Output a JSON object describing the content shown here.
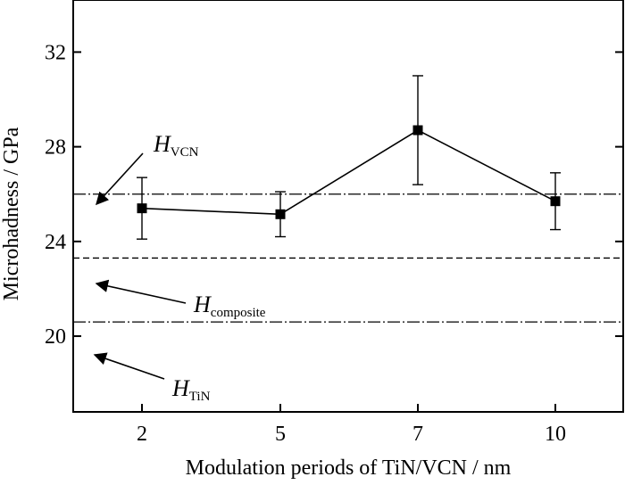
{
  "chart_data": {
    "type": "line",
    "xlabel": "Modulation periods of TiN/VCN / nm",
    "ylabel": "Microhadness / GPa",
    "ylim": [
      16.8,
      34.2
    ],
    "yticks": [
      20,
      24,
      28,
      32
    ],
    "categories": [
      "2",
      "5",
      "7",
      "10"
    ],
    "series": [
      {
        "values": [
          25.4,
          25.15,
          28.7,
          25.7
        ],
        "err_upper": [
          26.7,
          26.1,
          31.0,
          26.9
        ],
        "err_lower": [
          24.1,
          24.2,
          26.4,
          24.5
        ],
        "marker": "square",
        "color": "#000000"
      }
    ],
    "reference_lines": [
      {
        "label_main": "H",
        "label_sub": "VCN",
        "value": 26.0,
        "style": "dash-dot"
      },
      {
        "label_main": "H",
        "label_sub": "composite",
        "value": 23.3,
        "style": "dashed"
      },
      {
        "label_main": "H",
        "label_sub": "TiN",
        "value": 20.6,
        "style": "dash-dot"
      }
    ],
    "grid": false,
    "legend": "none"
  }
}
